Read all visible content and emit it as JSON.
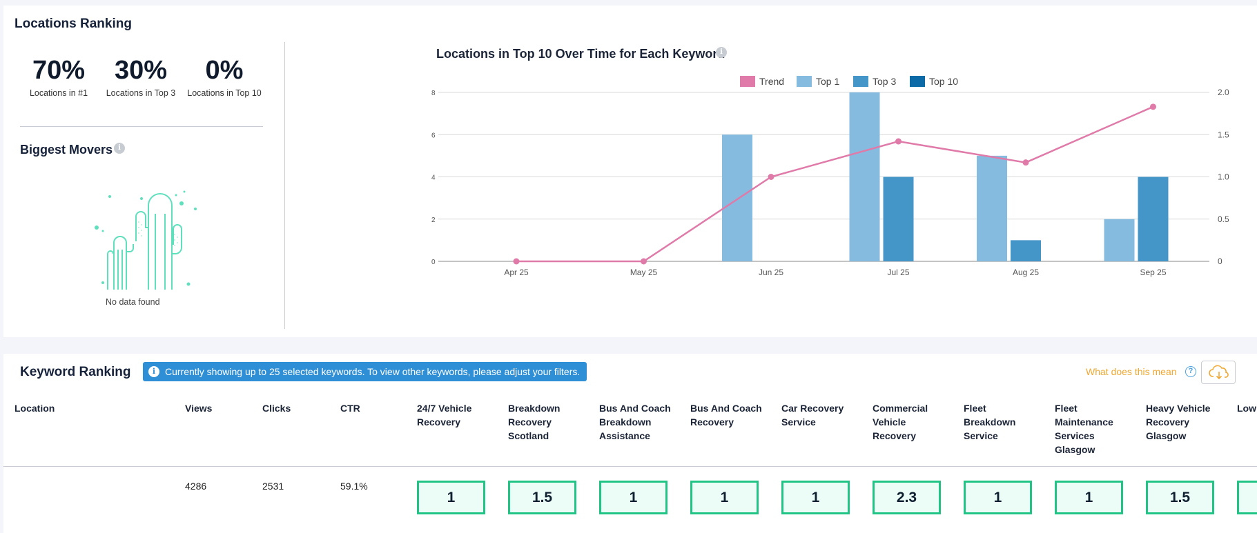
{
  "locations_ranking": {
    "title": "Locations Ranking",
    "stats": [
      {
        "value": "70%",
        "caption": "Locations in #1"
      },
      {
        "value": "30%",
        "caption": "Locations in Top 3"
      },
      {
        "value": "0%",
        "caption": "Locations in Top 10"
      }
    ],
    "biggest_movers": {
      "title": "Biggest Movers",
      "empty_text": "No data found"
    }
  },
  "chart_data": {
    "type": "bar",
    "title": "Locations in Top 10 Over Time for Each Keyword",
    "categories": [
      "Apr 25",
      "May 25",
      "Jun 25",
      "Jul 25",
      "Aug 25",
      "Sep 25"
    ],
    "series": [
      {
        "name": "Top 1",
        "values": [
          0,
          0,
          6,
          8,
          5,
          2
        ],
        "color": "#86bbe0"
      },
      {
        "name": "Top 3",
        "values": [
          0,
          0,
          0,
          4,
          1,
          4
        ],
        "color": "#4596c8"
      },
      {
        "name": "Top 10",
        "values": [
          0,
          0,
          0,
          0,
          0,
          0
        ],
        "color": "#0c6aa6"
      }
    ],
    "line": {
      "name": "Trend",
      "values": [
        0,
        0,
        1.0,
        1.42,
        1.17,
        1.83
      ],
      "color": "#e07aa8",
      "axis": "right"
    },
    "left_axis": {
      "ticks": [
        "0",
        "2",
        "4",
        "6",
        "8"
      ],
      "range": [
        0,
        8
      ]
    },
    "right_axis": {
      "ticks": [
        "0",
        "0.5",
        "1.0",
        "1.5",
        "2.0"
      ],
      "range": [
        0,
        2
      ]
    },
    "legend": [
      "Trend",
      "Top 1",
      "Top 3",
      "Top 10"
    ],
    "legend_position": "top-center",
    "grid": true
  },
  "keyword_ranking": {
    "title": "Keyword Ranking",
    "notice": "Currently showing up to 25 selected keywords. To view other keywords, please adjust your filters.",
    "help_link": "What does this mean",
    "columns": [
      "Location",
      "Views",
      "Clicks",
      "CTR"
    ],
    "keyword_columns": [
      "24/7 Vehicle Recovery",
      "Breakdown Recovery Scotland",
      "Bus And Coach Breakdown Assistance",
      "Bus And Coach Recovery",
      "Car Recovery Service",
      "Commercial Vehicle Recovery",
      "Fleet Breakdown Service",
      "Fleet Maintenance Services Glasgow",
      "Heavy Vehicle Recovery Glasgow",
      "Low Tra"
    ],
    "rows": [
      {
        "location": "",
        "views": "4286",
        "clicks": "2531",
        "ctr": "59.1%",
        "ranks": [
          "1",
          "1.5",
          "1",
          "1",
          "1",
          "2.3",
          "1",
          "1",
          "1.5",
          ""
        ]
      }
    ]
  }
}
